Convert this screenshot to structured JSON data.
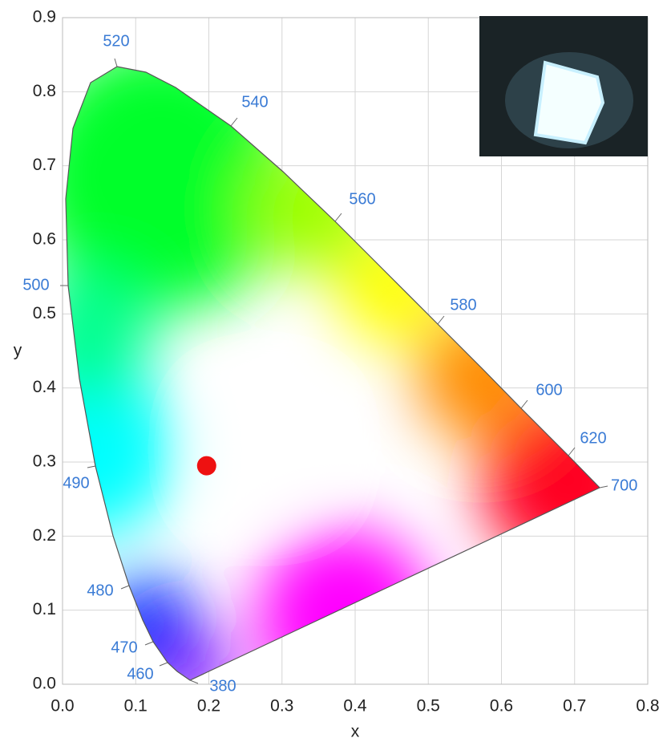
{
  "chart_data": {
    "type": "scatter",
    "x_label": "x",
    "y_label": "y",
    "x": [
      0.197
    ],
    "y": [
      0.295
    ],
    "color": "#ee1111",
    "xlim": [
      0,
      0.8
    ],
    "ylim": [
      0,
      0.9
    ],
    "xticks": [
      {
        "value": 0,
        "label": "0.0"
      },
      0.1,
      0.2,
      0.3,
      0.4,
      0.5,
      0.6,
      0.7,
      0.8
    ],
    "yticks": [
      {
        "value": 0,
        "label": "0.0"
      },
      0.1,
      0.2,
      0.3,
      0.4,
      0.5,
      0.6,
      0.7,
      0.8,
      0.9
    ],
    "grid": true,
    "wavelength_labels": [
      "520",
      "540",
      "560",
      "580",
      "600",
      "620",
      "700",
      "500",
      "490",
      "480",
      "470",
      "460",
      "380"
    ]
  }
}
